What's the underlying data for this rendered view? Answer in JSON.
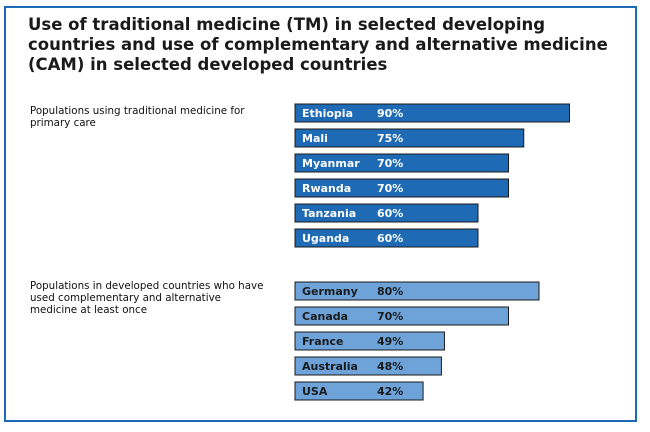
{
  "title": "Use of traditional medicine (TM) in selected developing countries and use of complementary and alternative medicine (CAM) in selected developed countries",
  "colors": {
    "border": "#1e6ab4",
    "tm_bar": "#1e6ab4",
    "tm_text": "#ffffff",
    "cam_bar": "#6ea3da",
    "cam_text": "#1a1a1a",
    "bar_outline": "#1a1a1a"
  },
  "chart_data": [
    {
      "type": "bar",
      "orientation": "horizontal",
      "label": "Populations using traditional medicine for primary care",
      "categories": [
        "Ethiopia",
        "Mali",
        "Myanmar",
        "Rwanda",
        "Tanzania",
        "Uganda"
      ],
      "values": [
        90,
        75,
        70,
        70,
        60,
        60
      ],
      "value_labels": [
        "90%",
        "75%",
        "70%",
        "70%",
        "60%",
        "60%"
      ],
      "unit": "%",
      "xlim": [
        0,
        100
      ]
    },
    {
      "type": "bar",
      "orientation": "horizontal",
      "label": "Populations in developed countries who have used complementary and alternative medicine at least once",
      "categories": [
        "Germany",
        "Canada",
        "France",
        "Australia",
        "USA"
      ],
      "values": [
        80,
        70,
        49,
        48,
        42
      ],
      "value_labels": [
        "80%",
        "70%",
        "49%",
        "48%",
        "42%"
      ],
      "unit": "%",
      "xlim": [
        0,
        100
      ]
    }
  ]
}
